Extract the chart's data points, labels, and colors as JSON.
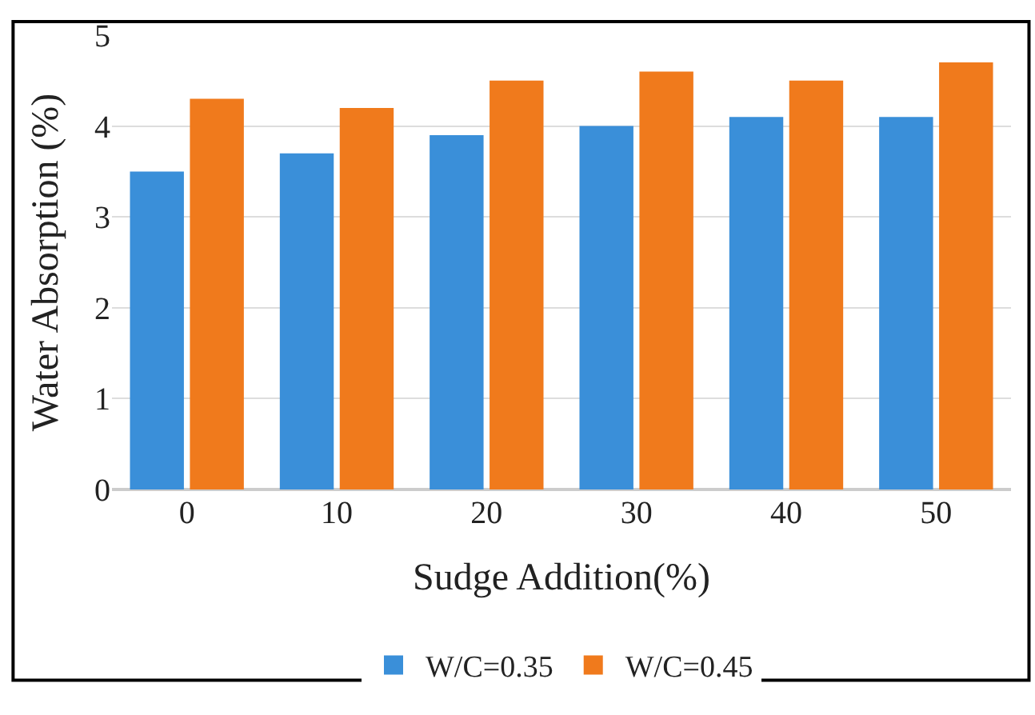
{
  "chart_data": {
    "type": "bar",
    "xlabel": "Sudge Addition(%)",
    "ylabel": "Water Absorption (%)",
    "categories": [
      "0",
      "10",
      "20",
      "30",
      "40",
      "50"
    ],
    "series": [
      {
        "name": "W/C=0.35",
        "color": "#3a8fd9",
        "values": [
          3.5,
          3.7,
          3.9,
          4.0,
          4.1,
          4.1
        ]
      },
      {
        "name": "W/C=0.45",
        "color": "#f07a1c",
        "values": [
          4.3,
          4.2,
          4.5,
          4.6,
          4.5,
          4.7
        ]
      }
    ],
    "ylim": [
      0,
      5
    ],
    "yticks": [
      0,
      1,
      2,
      3,
      4,
      5
    ],
    "grid": "y",
    "legend": "bottom"
  }
}
